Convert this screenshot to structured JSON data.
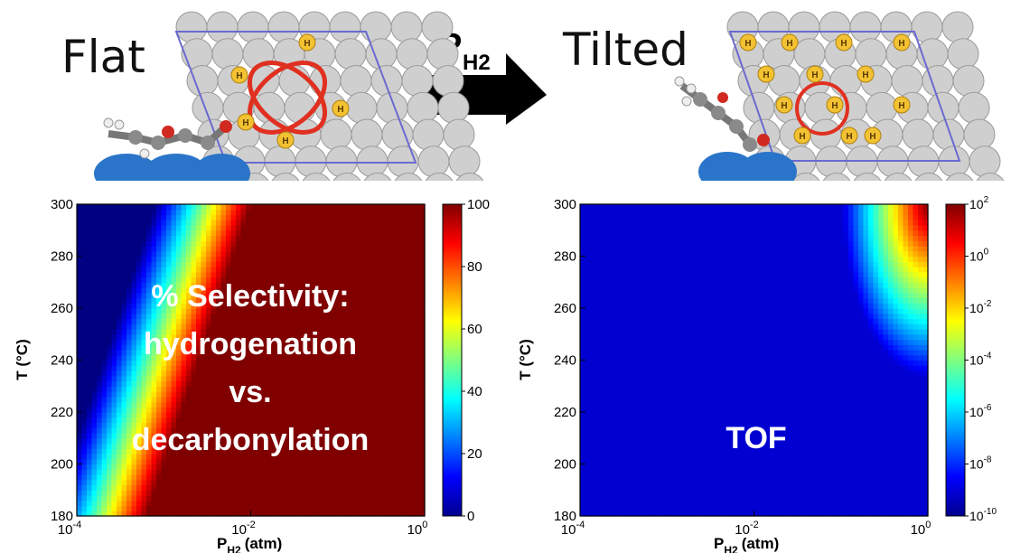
{
  "header": {
    "left_label": "Flat",
    "right_label": "Tilted",
    "arrow_label_main": "P",
    "arrow_label_sub": "H2",
    "adsorbate_marker": "H"
  },
  "chart_data": [
    {
      "type": "heatmap",
      "overlay_text": [
        "% Selectivity:",
        "hydrogenation",
        "vs.",
        "decarbonylation"
      ],
      "xlabel_main": "P",
      "xlabel_sub": "H2",
      "xlabel_unit": "(atm)",
      "ylabel": "T (°C)",
      "x_scale": "log",
      "xlim": [
        0.0001,
        1
      ],
      "xticks": [
        {
          "base": "10",
          "exp": "-4"
        },
        {
          "base": "10",
          "exp": "-2"
        },
        {
          "base": "10",
          "exp": "0"
        }
      ],
      "ylim": [
        180,
        300
      ],
      "yticks": [
        180,
        200,
        220,
        240,
        260,
        280,
        300
      ],
      "colorbar": {
        "min": 0,
        "max": 100,
        "ticks": [
          "0",
          "20",
          "40",
          "60",
          "80",
          "100"
        ]
      },
      "colormap": "jet",
      "description_of_field": {
        "boundary_at_180C_log10P": -4.3,
        "boundary_at_300C_log10P": -3.1,
        "band_width_decades": 1.1,
        "high_value": 100,
        "low_value": 0
      }
    },
    {
      "type": "heatmap",
      "overlay_text": [
        "TOF"
      ],
      "xlabel_main": "P",
      "xlabel_sub": "H2",
      "xlabel_unit": "(atm)",
      "ylabel": "T (°C)",
      "x_scale": "log",
      "xlim": [
        0.0001,
        1
      ],
      "xticks": [
        {
          "base": "10",
          "exp": "-4"
        },
        {
          "base": "10",
          "exp": "-2"
        },
        {
          "base": "10",
          "exp": "0"
        }
      ],
      "ylim": [
        180,
        300
      ],
      "yticks": [
        180,
        200,
        220,
        240,
        260,
        280,
        300
      ],
      "colorbar": {
        "scale": "log",
        "min_exp": -10,
        "max_exp": 2,
        "ticks": [
          {
            "base": "10",
            "exp": "-10"
          },
          {
            "base": "10",
            "exp": "-8"
          },
          {
            "base": "10",
            "exp": "-6"
          },
          {
            "base": "10",
            "exp": "-4"
          },
          {
            "base": "10",
            "exp": "-2"
          },
          {
            "base": "10",
            "exp": "0"
          },
          {
            "base": "10",
            "exp": "2"
          }
        ]
      },
      "colormap": "jet",
      "peak": {
        "log10P": 0,
        "T": 300,
        "log10TOF": 2
      }
    }
  ],
  "colors": {
    "overlay_text": "#ffffff",
    "ring": "#e03020",
    "cell_border": "#6a6ad0",
    "h_atom": "#f2c232",
    "substrate": "#2a75c9"
  }
}
